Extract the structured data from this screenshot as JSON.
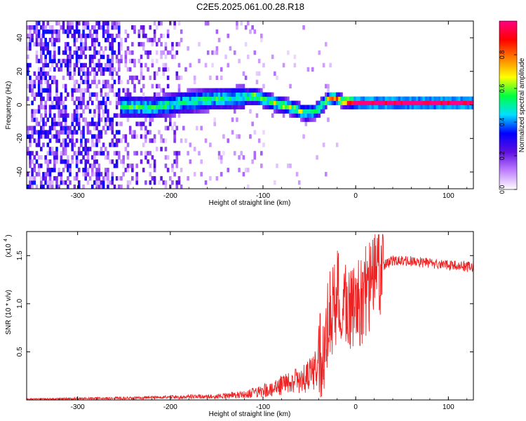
{
  "figure": {
    "title": "C2E5.2025.061.00.28.R18"
  },
  "chart_data": [
    {
      "type": "heatmap",
      "panel": "top",
      "xlabel": "Height of straight line (km)",
      "ylabel": "Frequency (Hz)",
      "xlim": [
        -355,
        127
      ],
      "ylim": [
        -50,
        50
      ],
      "xticks": [
        -300,
        -200,
        -100,
        0,
        100
      ],
      "xtick_labels": [
        "-300",
        "-200",
        "-100",
        "0",
        "100"
      ],
      "yticks": [
        -40,
        -20,
        0,
        20,
        40
      ],
      "ytick_labels": [
        "-40",
        "-20",
        "0",
        "20",
        "40"
      ],
      "colorbar": {
        "label": "Normalized spectral amplitude",
        "range": [
          0,
          1
        ],
        "ticks": [
          0.0,
          0.2,
          0.4,
          0.6,
          0.8
        ],
        "tick_labels": [
          "0.0",
          "0.2",
          "0.4",
          "0.6",
          "0.8"
        ],
        "colormap": [
          "#ffffff",
          "#c080ff",
          "#6010e0",
          "#0000ff",
          "#00e0ff",
          "#00ff40",
          "#ffff00",
          "#ff8000",
          "#ff0000",
          "#ff0080"
        ]
      },
      "ridge": {
        "x": [
          -250,
          -220,
          -190,
          -160,
          -130,
          -110,
          -90,
          -70,
          -55,
          -45,
          -38,
          -32,
          -25,
          -15,
          0,
          50,
          127
        ],
        "y": [
          -2,
          -3,
          0,
          2,
          3,
          4,
          0,
          -3,
          -6,
          -5,
          -2,
          2,
          3,
          1,
          0,
          0,
          0
        ]
      }
    },
    {
      "type": "line",
      "panel": "bottom",
      "xlabel": "Height of straight line (km)",
      "ylabel": "SNR (10 * v/v)",
      "y_multiplier": "(x10",
      "y_multiplier_exp": "4",
      "y_multiplier_close": ")",
      "xlim": [
        -355,
        127
      ],
      "ylim": [
        0,
        1.75
      ],
      "xticks": [
        -300,
        -200,
        -100,
        0,
        100
      ],
      "xtick_labels": [
        "-300",
        "-200",
        "-100",
        "0",
        "100"
      ],
      "yticks": [
        0.5,
        1.0,
        1.5
      ],
      "ytick_labels": [
        "0.5",
        "1.0",
        "1.5"
      ],
      "series": [
        {
          "color": "#ee2222",
          "envelope_x": [
            -355,
            -250,
            -200,
            -150,
            -120,
            -100,
            -80,
            -60,
            -45,
            -35,
            -28,
            -22,
            -15,
            -8,
            0,
            10,
            20,
            30,
            40,
            60,
            80,
            100,
            127
          ],
          "envelope_y": [
            0.01,
            0.02,
            0.03,
            0.04,
            0.06,
            0.1,
            0.16,
            0.22,
            0.3,
            0.55,
            0.85,
            1.05,
            1.1,
            1.0,
            0.95,
            1.1,
            1.28,
            1.4,
            1.45,
            1.44,
            1.42,
            1.4,
            1.38
          ]
        }
      ]
    }
  ]
}
